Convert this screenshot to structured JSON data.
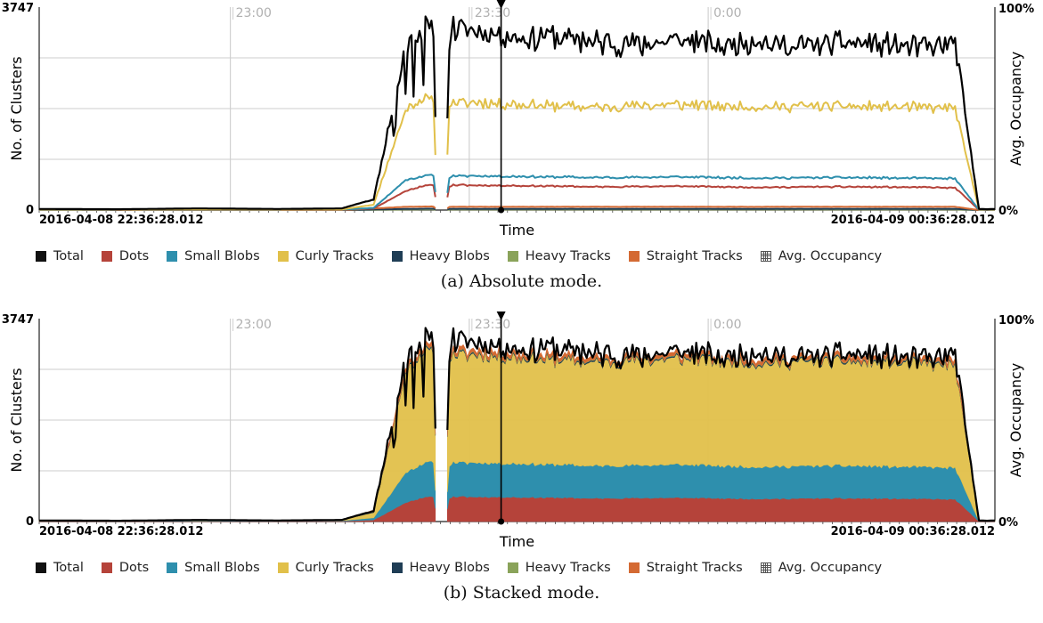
{
  "chart_data": [
    {
      "type": "line",
      "mode": "absolute",
      "caption": "(a) Absolute mode.",
      "xlabel": "Time",
      "ylabel": "No. of Clusters",
      "y2label": "Avg. Occupancy",
      "ytick_max": "3747",
      "ytick_min": "0",
      "y2tick_max": "100%",
      "y2tick_min": "0%",
      "ylim": [
        0,
        3747
      ],
      "x_start_label": "2016-04-08 22:36:28.012",
      "x_end_label": "2016-04-09 00:36:28.012",
      "xticks": [
        "23:00",
        "23:30",
        "0:00"
      ],
      "xtick_minutes": [
        24,
        54,
        84
      ],
      "x_range_minutes": [
        0,
        120
      ],
      "gap_minutes": [
        49.8,
        51.2
      ],
      "cursor_minute": 58,
      "grid": true,
      "legend_position": "bottom",
      "series": [
        {
          "name": "Total",
          "color": "#000000",
          "x": [
            0,
            10,
            20,
            30,
            38,
            42,
            46,
            48,
            49.5,
            50,
            51,
            51.5,
            52,
            54,
            58,
            60,
            64,
            70,
            75,
            80,
            85,
            90,
            95,
            100,
            105,
            110,
            115,
            118,
            119,
            120
          ],
          "y": [
            20,
            15,
            30,
            20,
            30,
            200,
            3000,
            3300,
            3350,
            60,
            60,
            3200,
            3350,
            3300,
            3250,
            3150,
            3200,
            3100,
            3050,
            3150,
            3050,
            3100,
            3000,
            3100,
            3050,
            3000,
            3050,
            20,
            15,
            20
          ]
        },
        {
          "name": "Dots",
          "color": "#b5433a",
          "x": [
            0,
            38,
            42,
            46,
            48,
            49.5,
            50,
            51,
            51.5,
            52,
            60,
            70,
            80,
            90,
            100,
            110,
            115,
            118,
            120
          ],
          "y": [
            5,
            8,
            30,
            350,
            440,
            460,
            20,
            20,
            440,
            460,
            450,
            430,
            440,
            420,
            430,
            420,
            410,
            5,
            5
          ]
        },
        {
          "name": "Small Blobs",
          "color": "#2e8fad",
          "x": [
            0,
            38,
            42,
            46,
            48,
            49.5,
            50,
            51,
            51.5,
            52,
            60,
            70,
            80,
            90,
            100,
            110,
            115,
            118,
            120
          ],
          "y": [
            5,
            8,
            40,
            550,
            620,
            640,
            20,
            20,
            600,
            630,
            620,
            600,
            610,
            590,
            600,
            590,
            580,
            5,
            5
          ]
        },
        {
          "name": "Curly Tracks",
          "color": "#e1c04a",
          "x": [
            0,
            38,
            42,
            46,
            48,
            49.5,
            50,
            51,
            51.5,
            52,
            60,
            70,
            80,
            90,
            100,
            110,
            115,
            118,
            120
          ],
          "y": [
            10,
            12,
            100,
            1850,
            2050,
            2050,
            40,
            40,
            1950,
            2000,
            1950,
            1900,
            1950,
            1900,
            1920,
            1900,
            1870,
            10,
            10
          ]
        },
        {
          "name": "Heavy Blobs",
          "color": "#1f3d55",
          "x": [
            0,
            38,
            46,
            49.5,
            50,
            51,
            51.5,
            60,
            80,
            100,
            115,
            118,
            120
          ],
          "y": [
            0,
            0,
            20,
            25,
            0,
            0,
            22,
            22,
            22,
            22,
            22,
            0,
            0
          ]
        },
        {
          "name": "Heavy Tracks",
          "color": "#8aa35a",
          "x": [
            0,
            38,
            46,
            49.5,
            50,
            51,
            51.5,
            60,
            80,
            100,
            115,
            118,
            120
          ],
          "y": [
            0,
            0,
            10,
            12,
            0,
            0,
            10,
            10,
            10,
            10,
            10,
            0,
            0
          ]
        },
        {
          "name": "Straight Tracks",
          "color": "#d46a33",
          "x": [
            0,
            38,
            46,
            49.5,
            50,
            51,
            51.5,
            60,
            80,
            100,
            115,
            118,
            120
          ],
          "y": [
            0,
            0,
            60,
            65,
            0,
            0,
            60,
            60,
            60,
            60,
            60,
            0,
            0
          ]
        }
      ]
    },
    {
      "type": "area",
      "mode": "stacked",
      "caption": "(b) Stacked mode.",
      "xlabel": "Time",
      "ylabel": "No. of Clusters",
      "y2label": "Avg. Occupancy",
      "ytick_max": "3747",
      "ytick_min": "0",
      "y2tick_max": "100%",
      "y2tick_min": "0%",
      "ylim": [
        0,
        3747
      ],
      "x_start_label": "2016-04-08 22:36:28.012",
      "x_end_label": "2016-04-09 00:36:28.012",
      "xticks": [
        "23:00",
        "23:30",
        "0:00"
      ],
      "xtick_minutes": [
        24,
        54,
        84
      ],
      "x_range_minutes": [
        0,
        120
      ],
      "gap_minutes": [
        49.8,
        51.2
      ],
      "cursor_minute": 58,
      "grid": true,
      "legend_position": "bottom",
      "stack_order": [
        "Dots",
        "Small Blobs",
        "Curly Tracks",
        "Heavy Blobs",
        "Heavy Tracks",
        "Straight Tracks"
      ],
      "series": [
        {
          "name": "Total",
          "color": "#000000",
          "x": [
            0,
            10,
            20,
            30,
            38,
            42,
            46,
            48,
            49.5,
            50,
            51,
            51.5,
            52,
            54,
            58,
            60,
            64,
            70,
            75,
            80,
            85,
            90,
            95,
            100,
            105,
            110,
            115,
            118,
            119,
            120
          ],
          "y": [
            20,
            15,
            30,
            20,
            30,
            200,
            3000,
            3300,
            3350,
            60,
            60,
            3200,
            3350,
            3300,
            3250,
            3150,
            3200,
            3100,
            3050,
            3150,
            3050,
            3100,
            3000,
            3100,
            3050,
            3000,
            3050,
            20,
            15,
            20
          ]
        },
        {
          "name": "Dots",
          "color": "#b5433a",
          "x": [
            0,
            38,
            42,
            46,
            48,
            49.5,
            50,
            51,
            51.5,
            52,
            60,
            70,
            80,
            90,
            100,
            110,
            115,
            118,
            120
          ],
          "y": [
            5,
            8,
            30,
            350,
            440,
            460,
            20,
            20,
            440,
            460,
            450,
            430,
            440,
            420,
            430,
            420,
            410,
            5,
            5
          ]
        },
        {
          "name": "Small Blobs",
          "color": "#2e8fad",
          "x": [
            0,
            38,
            42,
            46,
            48,
            49.5,
            50,
            51,
            51.5,
            52,
            60,
            70,
            80,
            90,
            100,
            110,
            115,
            118,
            120
          ],
          "y": [
            5,
            8,
            40,
            550,
            620,
            640,
            20,
            20,
            600,
            630,
            620,
            600,
            610,
            590,
            600,
            590,
            580,
            5,
            5
          ]
        },
        {
          "name": "Curly Tracks",
          "color": "#e1c04a",
          "x": [
            0,
            38,
            42,
            46,
            48,
            49.5,
            50,
            51,
            51.5,
            52,
            60,
            70,
            80,
            90,
            100,
            110,
            115,
            118,
            120
          ],
          "y": [
            10,
            12,
            100,
            1850,
            2050,
            2050,
            40,
            40,
            1950,
            2000,
            1950,
            1900,
            1950,
            1900,
            1920,
            1900,
            1870,
            10,
            10
          ]
        },
        {
          "name": "Heavy Blobs",
          "color": "#1f3d55",
          "x": [
            0,
            38,
            46,
            49.5,
            50,
            51,
            51.5,
            60,
            80,
            100,
            115,
            118,
            120
          ],
          "y": [
            0,
            0,
            20,
            25,
            0,
            0,
            22,
            22,
            22,
            22,
            22,
            0,
            0
          ]
        },
        {
          "name": "Heavy Tracks",
          "color": "#8aa35a",
          "x": [
            0,
            38,
            46,
            49.5,
            50,
            51,
            51.5,
            60,
            80,
            100,
            115,
            118,
            120
          ],
          "y": [
            0,
            0,
            10,
            12,
            0,
            0,
            10,
            10,
            10,
            10,
            10,
            0,
            0
          ]
        },
        {
          "name": "Straight Tracks",
          "color": "#d46a33",
          "x": [
            0,
            38,
            46,
            49.5,
            50,
            51,
            51.5,
            60,
            80,
            100,
            115,
            118,
            120
          ],
          "y": [
            0,
            0,
            60,
            65,
            0,
            0,
            60,
            60,
            60,
            60,
            60,
            0,
            0
          ]
        }
      ]
    }
  ],
  "legend": [
    {
      "label": "Total",
      "color": "#111111"
    },
    {
      "label": "Dots",
      "color": "#b5433a"
    },
    {
      "label": "Small Blobs",
      "color": "#2e8fad"
    },
    {
      "label": "Curly Tracks",
      "color": "#e1c04a"
    },
    {
      "label": "Heavy Blobs",
      "color": "#1f3d55"
    },
    {
      "label": "Heavy Tracks",
      "color": "#8aa35a"
    },
    {
      "label": "Straight Tracks",
      "color": "#d46a33"
    },
    {
      "label": "Avg. Occupancy",
      "icon": "grid-icon"
    }
  ]
}
